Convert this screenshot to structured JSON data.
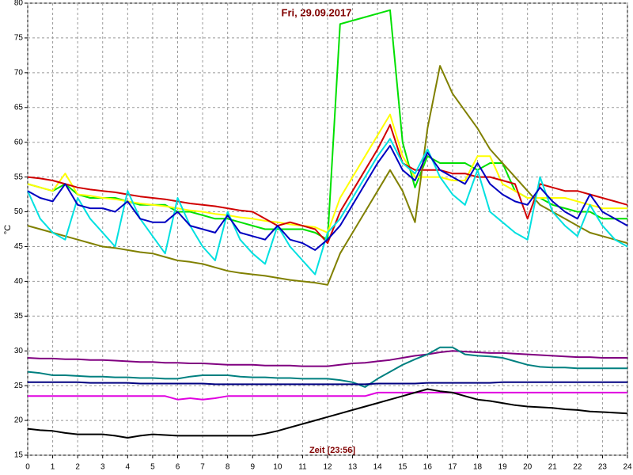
{
  "chart_data": {
    "type": "line",
    "title": "Fri, 29.09.2017",
    "x_label": "Zeit [23:56]",
    "y_label": "°C",
    "xlim": [
      0,
      24
    ],
    "xticks": [
      0,
      1,
      2,
      3,
      4,
      5,
      6,
      7,
      8,
      9,
      10,
      11,
      12,
      13,
      14,
      15,
      16,
      17,
      18,
      19,
      20,
      21,
      22,
      23,
      24
    ],
    "ylim": [
      15,
      80
    ],
    "yticks": [
      15,
      20,
      25,
      30,
      35,
      40,
      45,
      50,
      55,
      60,
      65,
      70,
      75,
      80
    ],
    "grid": true,
    "x": [
      0,
      0.5,
      1,
      1.5,
      2,
      2.5,
      3,
      3.5,
      4,
      4.5,
      5,
      5.5,
      6,
      6.5,
      7,
      7.5,
      8,
      8.5,
      9,
      9.5,
      10,
      10.5,
      11,
      11.5,
      12,
      12.5,
      13,
      13.5,
      14,
      14.5,
      15,
      15.5,
      16,
      16.5,
      17,
      17.5,
      18,
      18.5,
      19,
      19.5,
      20,
      20.5,
      21,
      21.5,
      22,
      22.5,
      23,
      23.5,
      24
    ],
    "series": [
      {
        "color": "#00e000",
        "values": [
          54,
          53.5,
          53,
          54,
          52.5,
          52,
          52,
          52,
          51.5,
          51,
          51,
          51,
          50,
          50,
          49.5,
          49,
          49,
          48.5,
          48,
          47.5,
          47.5,
          47.5,
          47.5,
          47,
          46,
          77,
          77.5,
          78,
          78.5,
          79,
          60,
          53.5,
          58,
          57,
          57,
          57,
          56,
          57,
          57,
          53,
          52,
          52,
          51,
          50.5,
          50,
          50,
          49,
          49,
          49
        ]
      },
      {
        "color": "#ffff00",
        "values": [
          54,
          53.5,
          53,
          55.5,
          52.5,
          52.3,
          52,
          51.8,
          51.5,
          51.2,
          51,
          50.8,
          50.5,
          50.2,
          50,
          49.7,
          49.5,
          49.2,
          49,
          48.7,
          48.5,
          48.2,
          48,
          47.8,
          47,
          52,
          55,
          58,
          61,
          64,
          58,
          55,
          55,
          55,
          54.5,
          54.5,
          58,
          58,
          54,
          53,
          52,
          52,
          52,
          52,
          51.5,
          51,
          50.5,
          50.5,
          50.5
        ]
      },
      {
        "color": "#d00000",
        "values": [
          55,
          54.8,
          54.5,
          54,
          53.5,
          53.2,
          53,
          52.8,
          52.5,
          52.2,
          52,
          51.8,
          51.5,
          51.2,
          51,
          50.8,
          50.5,
          50.2,
          50,
          49,
          48,
          48.5,
          48,
          47.5,
          45.5,
          50,
          53,
          56,
          59,
          62.5,
          57,
          56,
          56,
          56,
          55.5,
          55.5,
          55,
          55,
          54.5,
          54,
          49,
          54,
          53.5,
          53,
          53,
          52.5,
          52,
          51.5,
          51
        ]
      },
      {
        "color": "#808000",
        "values": [
          48,
          47.5,
          47,
          46.5,
          46,
          45.5,
          45,
          44.8,
          44.5,
          44.2,
          44,
          43.5,
          43,
          42.8,
          42.5,
          42,
          41.5,
          41.2,
          41,
          40.8,
          40.5,
          40.2,
          40,
          39.8,
          39.5,
          44,
          47,
          50,
          53,
          56,
          53,
          48.5,
          62,
          71,
          67,
          64.5,
          62,
          59,
          57,
          55,
          53,
          51,
          50,
          49,
          48,
          47,
          46.5,
          46,
          45.5
        ]
      },
      {
        "color": "#00e0e0",
        "values": [
          53,
          49,
          47,
          46,
          52,
          49,
          47,
          45,
          53,
          49,
          46.5,
          44,
          52,
          48,
          45,
          43,
          50,
          46,
          44,
          42.5,
          48,
          45,
          43,
          41,
          47,
          49,
          52,
          55,
          58,
          60.5,
          57,
          55.5,
          59,
          55,
          52.5,
          51,
          56,
          50,
          48.5,
          47,
          46,
          55,
          50,
          48,
          46.5,
          51,
          48,
          46,
          45
        ]
      },
      {
        "color": "#0000c0",
        "values": [
          53,
          52,
          51.5,
          54,
          51,
          50.5,
          50.5,
          50,
          51.5,
          49,
          48.5,
          48.5,
          50,
          48,
          47.5,
          47,
          49.5,
          47,
          46.5,
          46,
          48,
          46,
          45.5,
          44.5,
          46,
          48,
          51,
          54,
          57,
          59.5,
          56,
          54.5,
          58.5,
          56,
          55,
          54,
          57,
          54,
          52.5,
          51.5,
          51,
          53.5,
          51.5,
          50,
          49,
          52.5,
          50,
          49,
          48
        ]
      },
      {
        "color": "#800080",
        "values": [
          29,
          28.9,
          28.9,
          28.8,
          28.8,
          28.7,
          28.7,
          28.6,
          28.5,
          28.4,
          28.4,
          28.3,
          28.3,
          28.2,
          28.2,
          28.1,
          28,
          28,
          28,
          27.9,
          27.9,
          27.9,
          27.8,
          27.8,
          27.8,
          28,
          28.2,
          28.3,
          28.5,
          28.7,
          29,
          29.3,
          29.5,
          29.8,
          30,
          29.9,
          29.8,
          29.7,
          29.7,
          29.6,
          29.5,
          29.4,
          29.3,
          29.2,
          29.1,
          29.1,
          29,
          29,
          29
        ]
      },
      {
        "color": "#008080",
        "values": [
          27,
          26.8,
          26.5,
          26.5,
          26.4,
          26.3,
          26.3,
          26.2,
          26.2,
          26.1,
          26.1,
          26,
          26,
          26.3,
          26.5,
          26.5,
          26.5,
          26.3,
          26.2,
          26.2,
          26.1,
          26.1,
          26,
          26,
          26,
          25.8,
          25.5,
          24.8,
          26,
          27,
          28,
          28.8,
          29.5,
          30.5,
          30.5,
          29.5,
          29.3,
          29.2,
          29,
          28.5,
          28,
          27.7,
          27.6,
          27.6,
          27.5,
          27.5,
          27.5,
          27.5,
          27.5
        ]
      },
      {
        "color": "#000080",
        "values": [
          25.5,
          25.5,
          25.5,
          25.5,
          25.5,
          25.4,
          25.4,
          25.4,
          25.4,
          25.3,
          25.3,
          25.3,
          25.3,
          25.3,
          25.3,
          25.2,
          25.2,
          25.2,
          25.2,
          25.2,
          25.2,
          25.2,
          25.2,
          25.2,
          25.2,
          25.2,
          25.2,
          25.2,
          25.3,
          25.3,
          25.3,
          25.3,
          25.4,
          25.4,
          25.4,
          25.4,
          25.4,
          25.4,
          25.5,
          25.5,
          25.5,
          25.5,
          25.5,
          25.5,
          25.5,
          25.5,
          25.5,
          25.5,
          25.5
        ]
      },
      {
        "color": "#e000e0",
        "values": [
          23.5,
          23.5,
          23.5,
          23.5,
          23.5,
          23.5,
          23.5,
          23.5,
          23.5,
          23.5,
          23.5,
          23.5,
          23,
          23.2,
          23,
          23.2,
          23.5,
          23.5,
          23.5,
          23.5,
          23.5,
          23.5,
          23.5,
          23.5,
          23.5,
          23.5,
          23.5,
          23.5,
          24,
          24,
          24,
          24,
          24,
          24,
          24,
          24,
          24,
          24,
          24,
          24,
          24,
          24,
          24,
          24,
          24,
          24,
          24,
          24,
          24
        ]
      },
      {
        "color": "#000000",
        "values": [
          18.8,
          18.6,
          18.5,
          18.2,
          18,
          18,
          18,
          17.8,
          17.5,
          17.8,
          18,
          17.9,
          17.8,
          17.8,
          17.8,
          17.8,
          17.8,
          17.8,
          17.8,
          18.1,
          18.5,
          19,
          19.5,
          20,
          20.5,
          21,
          21.5,
          22,
          22.5,
          23,
          23.5,
          24,
          24.5,
          24.2,
          24,
          23.5,
          23,
          22.8,
          22.5,
          22.2,
          22,
          21.9,
          21.8,
          21.6,
          21.5,
          21.3,
          21.2,
          21.1,
          21
        ]
      }
    ]
  }
}
